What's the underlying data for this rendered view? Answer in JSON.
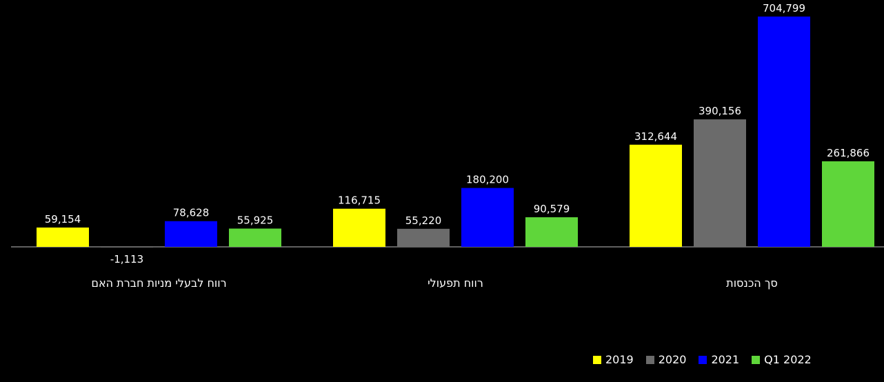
{
  "chart_data": {
    "type": "bar",
    "categories": [
      "רווח לבעלי מניות חברת האם",
      "רווח תפעולי",
      "סך הכנסות"
    ],
    "series": [
      {
        "name": "2019",
        "color": "#ffff00",
        "values": [
          59154,
          116715,
          312644
        ],
        "labels": [
          "59,154",
          "116,715",
          "312,644"
        ]
      },
      {
        "name": "2020",
        "color": "#6b6b6b",
        "values": [
          -1113,
          55220,
          390156
        ],
        "labels": [
          "-1,113",
          "55,220",
          "390,156"
        ]
      },
      {
        "name": "2021",
        "color": "#0000ff",
        "values": [
          78628,
          180200,
          704799
        ],
        "labels": [
          "78,628",
          "180,200",
          "704,799"
        ]
      },
      {
        "name": "Q1 2022",
        "color": "#5fd63a",
        "values": [
          55925,
          90579,
          261866
        ],
        "labels": [
          "55,925",
          "90,579",
          "261,866"
        ]
      }
    ],
    "legend_position": "bottom-right",
    "grid": false
  }
}
